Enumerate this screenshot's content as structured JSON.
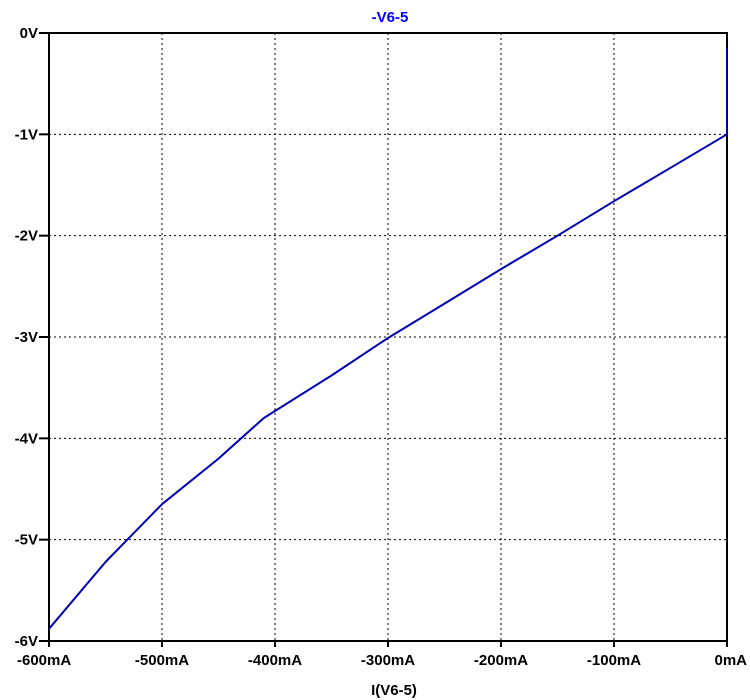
{
  "chart_data": {
    "type": "line",
    "title": "-V6-5",
    "title_color": "#0000ff",
    "line_color": "#0000b4",
    "xlabel": "I(V6-5)",
    "ylabel": "",
    "xlim": [
      -600,
      0
    ],
    "ylim": [
      -6,
      0
    ],
    "x_unit": "mA",
    "y_unit": "V",
    "x_ticks": [
      -600,
      -500,
      -400,
      -300,
      -200,
      -100,
      0
    ],
    "x_tick_labels": [
      "-600mA",
      "-500mA",
      "-400mA",
      "-300mA",
      "-200mA",
      "-100mA",
      "0mA"
    ],
    "y_ticks": [
      0,
      -1,
      -2,
      -3,
      -4,
      -5,
      -6
    ],
    "y_tick_labels": [
      "0V",
      "-1V",
      "-2V",
      "-3V",
      "-4V",
      "-5V",
      "-6V"
    ],
    "grid": true,
    "series": [
      {
        "name": "-V6-5",
        "x": [
          -600,
          -550,
          -500,
          -450,
          -410,
          -400,
          -350,
          -300,
          -250,
          -200,
          -150,
          -100,
          -50,
          0,
          0
        ],
        "y": [
          -5.88,
          -5.22,
          -4.65,
          -4.2,
          -3.8,
          -3.73,
          -3.38,
          -3.01,
          -2.67,
          -2.33,
          -2.0,
          -1.66,
          -1.33,
          -1.0,
          -0.14
        ]
      }
    ]
  }
}
